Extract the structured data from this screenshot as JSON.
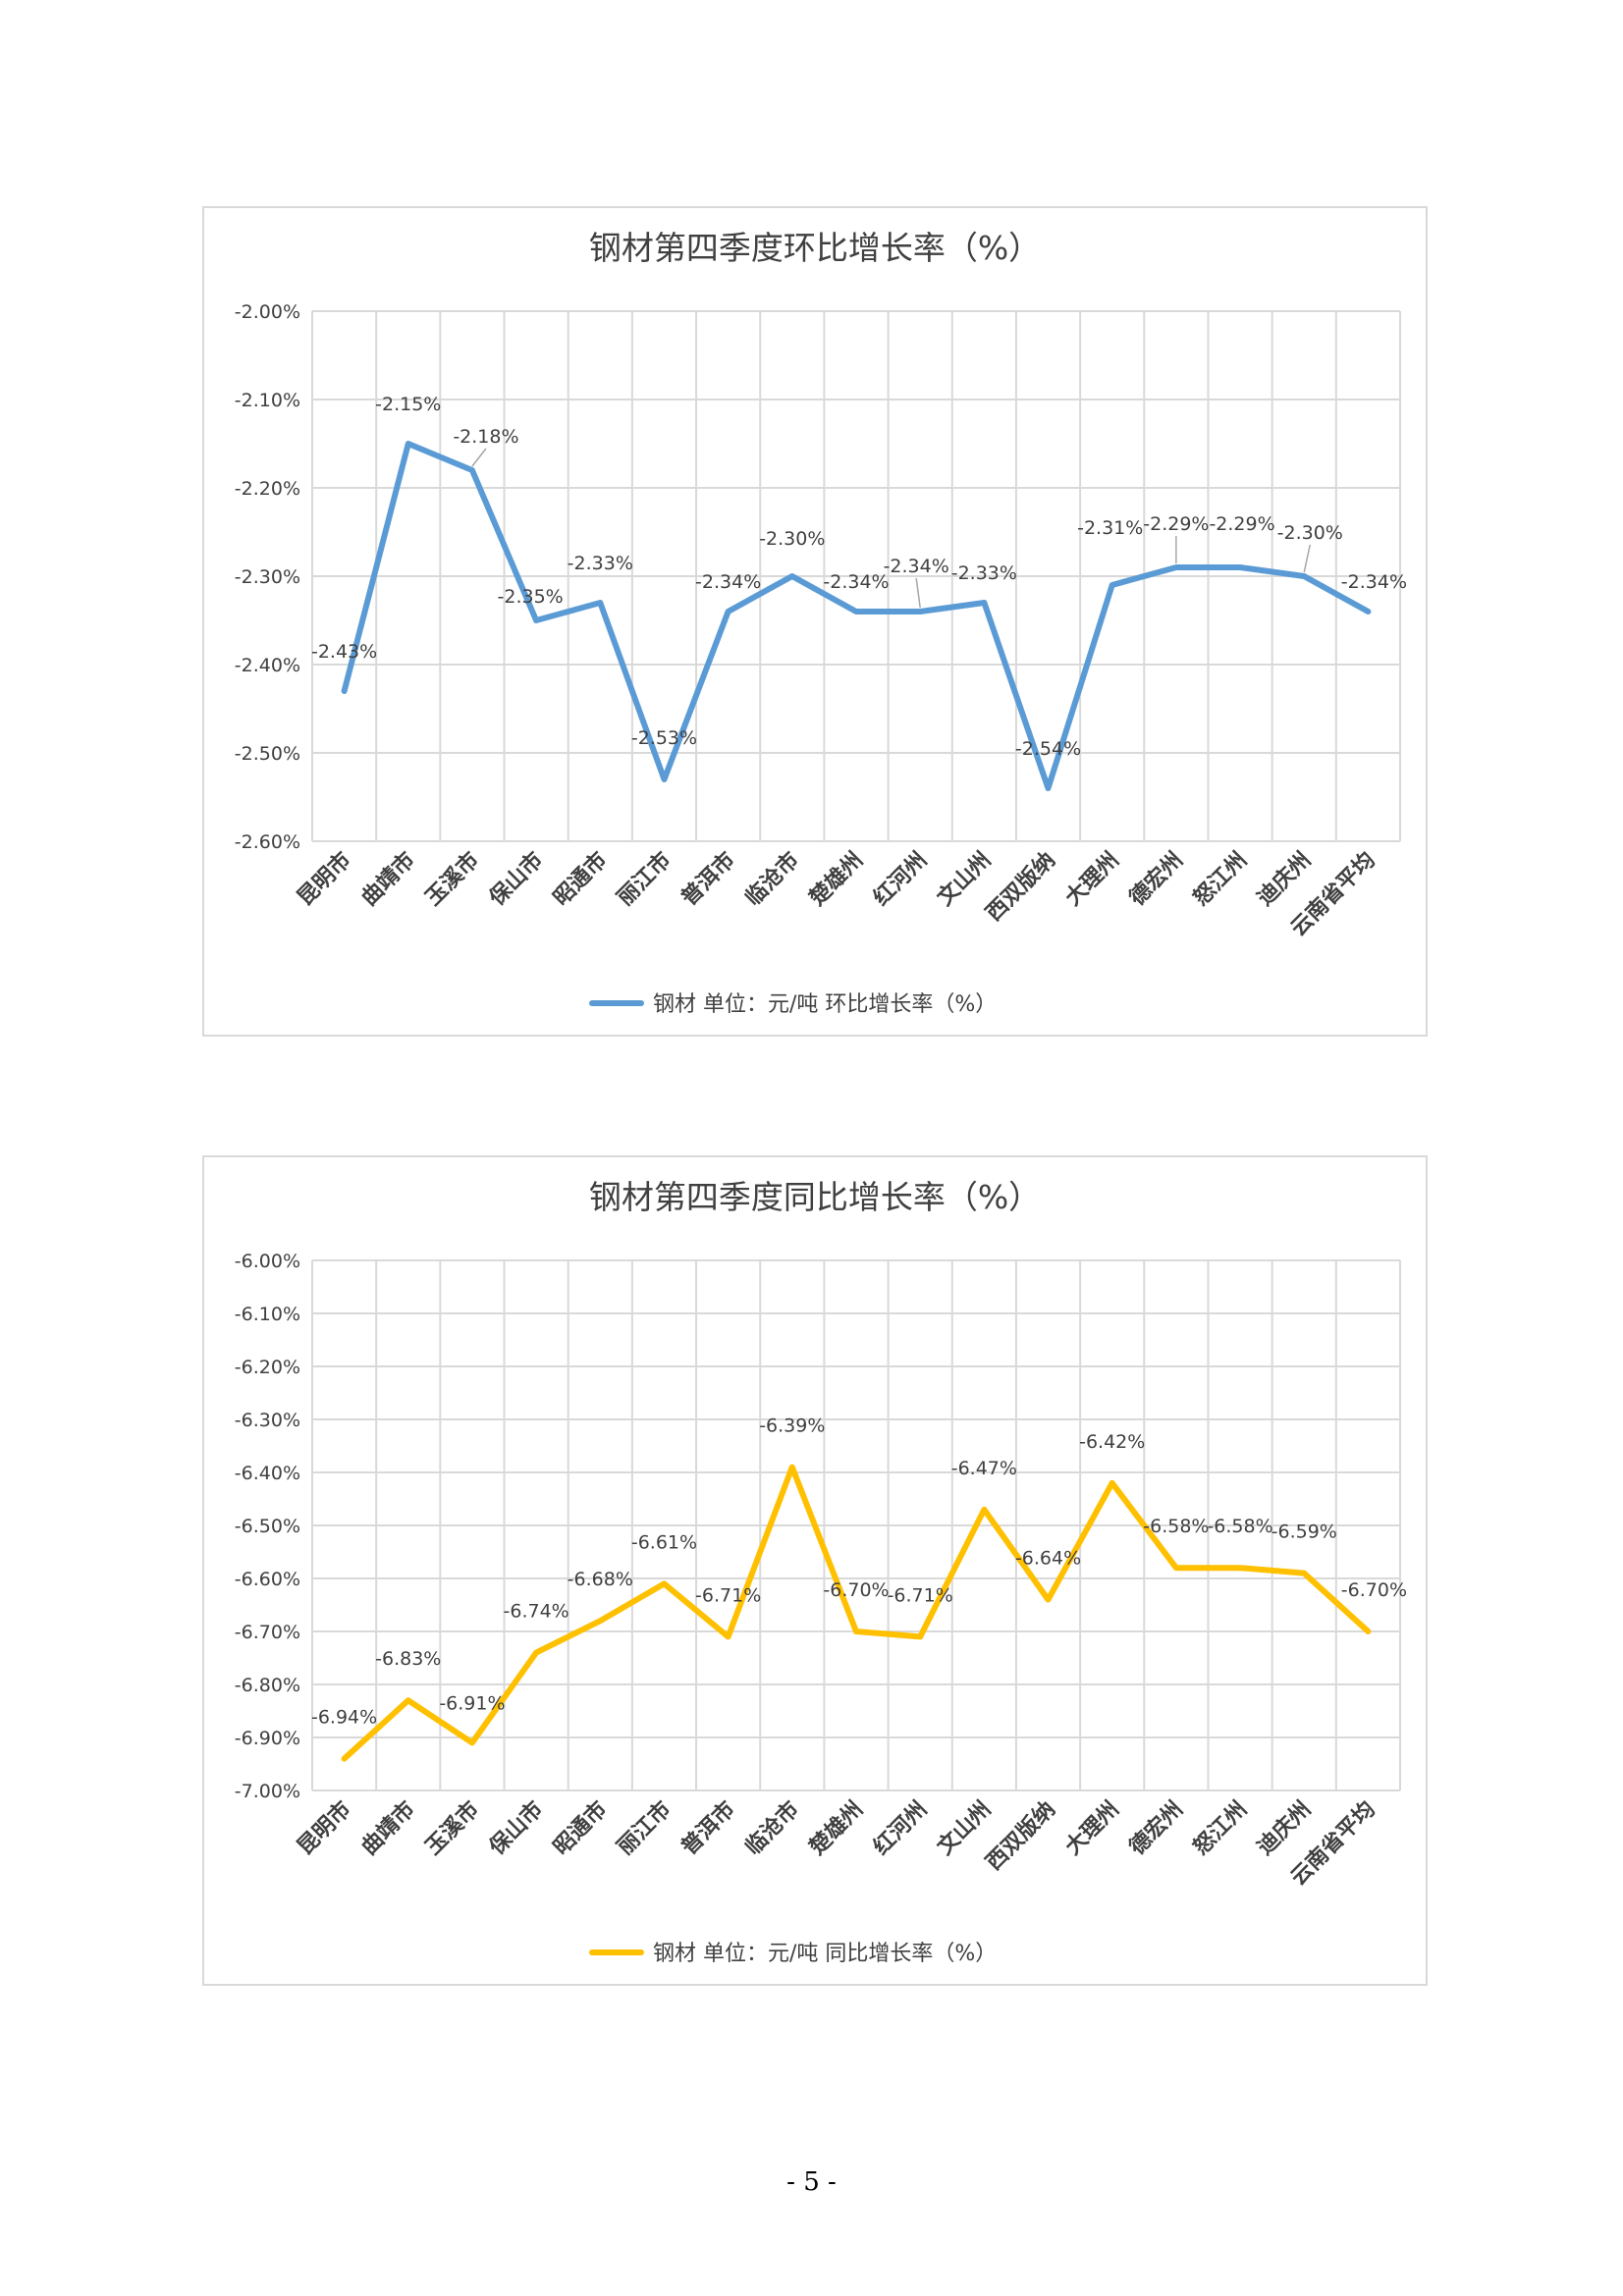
{
  "page": {
    "number": "- 5 -"
  },
  "chart_data": [
    {
      "type": "line",
      "title": "钢材第四季度环比增长率（%）",
      "categories": [
        "昆明市",
        "曲靖市",
        "玉溪市",
        "保山市",
        "昭通市",
        "丽江市",
        "普洱市",
        "临沧市",
        "楚雄州",
        "红河州",
        "文山州",
        "西双版纳",
        "大理州",
        "德宏州",
        "怒江州",
        "迪庆州",
        "云南省平均"
      ],
      "series": [
        {
          "name": "钢材 单位：元/吨 环比增长率（%）",
          "values": [
            -2.43,
            -2.15,
            -2.18,
            -2.35,
            -2.33,
            -2.53,
            -2.34,
            -2.3,
            -2.34,
            -2.34,
            -2.33,
            -2.54,
            -2.31,
            -2.29,
            -2.29,
            -2.3,
            -2.34
          ],
          "data_labels": [
            "-2.43%",
            "-2.15%",
            "-2.18%",
            "-2.35%",
            "-2.33%",
            "-2.53%",
            "-2.34%",
            "-2.30%",
            "-2.34%",
            "-2.34%",
            "-2.33%",
            "-2.54%",
            "-2.31%",
            "-2.29%",
            "-2.29%",
            "-2.30%",
            "-2.34%"
          ],
          "color": "#5b9bd5"
        }
      ],
      "ylim": [
        -2.6,
        -2.0
      ],
      "yticks": [
        -2.6,
        -2.5,
        -2.4,
        -2.3,
        -2.2,
        -2.1,
        -2.0
      ],
      "ytick_labels": [
        "-2.60%",
        "-2.50%",
        "-2.40%",
        "-2.30%",
        "-2.20%",
        "-2.10%",
        "-2.00%"
      ],
      "grid": true,
      "legend_position": "bottom"
    },
    {
      "type": "line",
      "title": "钢材第四季度同比增长率（%）",
      "categories": [
        "昆明市",
        "曲靖市",
        "玉溪市",
        "保山市",
        "昭通市",
        "丽江市",
        "普洱市",
        "临沧市",
        "楚雄州",
        "红河州",
        "文山州",
        "西双版纳",
        "大理州",
        "德宏州",
        "怒江州",
        "迪庆州",
        "云南省平均"
      ],
      "series": [
        {
          "name": "钢材 单位：元/吨 同比增长率（%）",
          "values": [
            -6.94,
            -6.83,
            -6.91,
            -6.74,
            -6.68,
            -6.61,
            -6.71,
            -6.39,
            -6.7,
            -6.71,
            -6.47,
            -6.64,
            -6.42,
            -6.58,
            -6.58,
            -6.59,
            -6.7
          ],
          "data_labels": [
            "-6.94%",
            "-6.83%",
            "-6.91%",
            "-6.74%",
            "-6.68%",
            "-6.61%",
            "-6.71%",
            "-6.39%",
            "-6.70%",
            "-6.71%",
            "-6.47%",
            "-6.64%",
            "-6.42%",
            "-6.58%",
            "-6.58%",
            "-6.59%",
            "-6.70%"
          ],
          "color": "#ffc000"
        }
      ],
      "ylim": [
        -7.0,
        -6.0
      ],
      "yticks": [
        -7.0,
        -6.9,
        -6.8,
        -6.7,
        -6.6,
        -6.5,
        -6.4,
        -6.3,
        -6.2,
        -6.1,
        -6.0
      ],
      "ytick_labels": [
        "-7.00%",
        "-6.90%",
        "-6.80%",
        "-6.70%",
        "-6.60%",
        "-6.50%",
        "-6.40%",
        "-6.30%",
        "-6.20%",
        "-6.10%",
        "-6.00%"
      ],
      "grid": true,
      "legend_position": "bottom"
    }
  ]
}
